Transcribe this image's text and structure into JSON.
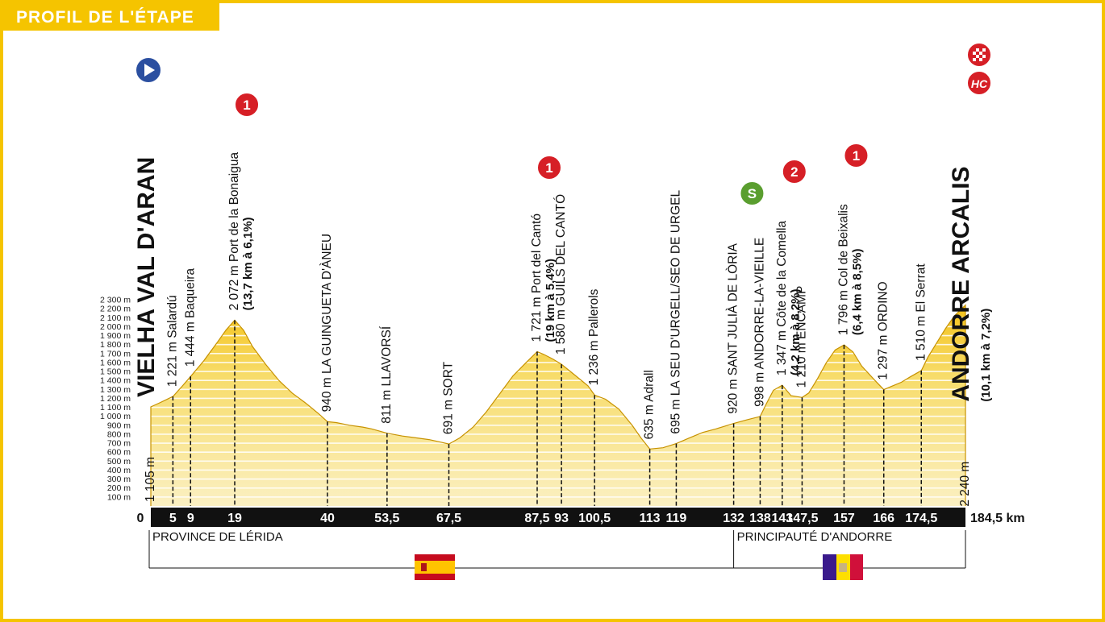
{
  "header": {
    "title": "PROFIL DE L'ÉTAPE"
  },
  "colors": {
    "frame": "#f5c400",
    "fill_light": "#fbeaa0",
    "fill_dark": "#e0a800",
    "axis_bar": "#111111",
    "climb_red": "#d61f26",
    "sprint_green": "#5a9e2f",
    "start_blue": "#2b4fa0"
  },
  "chart_data": {
    "type": "area",
    "x_unit": "km",
    "y_unit": "m",
    "xlim": [
      0,
      184.5
    ],
    "ylim": [
      0,
      2300
    ],
    "y_ticks": [
      "100 m",
      "200 m",
      "300 m",
      "400 m",
      "500 m",
      "600 m",
      "700 m",
      "800 m",
      "900 m",
      "1 000 m",
      "1 100 m",
      "1 200 m",
      "1 300 m",
      "1 400 m",
      "1 500 m",
      "1 600 m",
      "1 700 m",
      "1 800 m",
      "1 900 m",
      "2 000 m",
      "2 100 m",
      "2 200 m",
      "2 300 m"
    ],
    "y_tick_values": [
      100,
      200,
      300,
      400,
      500,
      600,
      700,
      800,
      900,
      1000,
      1100,
      1200,
      1300,
      1400,
      1500,
      1600,
      1700,
      1800,
      1900,
      2000,
      2100,
      2200,
      2300
    ],
    "x_ticks": [
      "0",
      "5",
      "9",
      "19",
      "40",
      "53,5",
      "67,5",
      "87,5",
      "93",
      "100,5",
      "113",
      "119",
      "132",
      "138",
      "143",
      "147,5",
      "157",
      "166",
      "174,5",
      "184,5 km"
    ],
    "x_tick_values": [
      0,
      5,
      9,
      19,
      40,
      53.5,
      67.5,
      87.5,
      93,
      100.5,
      113,
      119,
      132,
      138,
      143,
      147.5,
      157,
      166,
      174.5,
      184.5
    ],
    "profile": {
      "x": [
        0,
        2,
        5,
        7,
        9,
        12,
        15,
        17,
        19,
        21,
        23,
        26,
        29,
        32,
        35,
        38,
        40,
        42,
        45,
        48,
        50,
        53.5,
        57,
        60,
        63,
        65,
        67.5,
        70,
        73,
        76,
        79,
        82,
        85,
        87.5,
        89,
        91,
        93,
        95,
        97,
        99,
        100.5,
        103,
        106,
        109,
        111,
        113,
        116,
        119,
        122,
        125,
        128,
        130,
        132,
        135,
        138,
        139.5,
        141,
        143,
        145,
        147.5,
        149,
        151,
        153,
        155,
        157,
        159,
        161,
        164,
        166,
        168,
        170,
        172,
        174.5,
        176,
        178,
        180,
        182,
        184.5
      ],
      "y": [
        1105,
        1150,
        1221,
        1330,
        1444,
        1620,
        1820,
        1960,
        2072,
        1960,
        1780,
        1580,
        1400,
        1260,
        1150,
        1030,
        940,
        930,
        900,
        880,
        860,
        811,
        780,
        760,
        740,
        720,
        691,
        760,
        880,
        1050,
        1250,
        1450,
        1600,
        1721,
        1690,
        1640,
        1580,
        1500,
        1420,
        1340,
        1236,
        1190,
        1080,
        900,
        760,
        635,
        650,
        695,
        760,
        820,
        860,
        890,
        920,
        960,
        998,
        1150,
        1290,
        1347,
        1230,
        1210,
        1260,
        1420,
        1600,
        1740,
        1796,
        1720,
        1560,
        1400,
        1297,
        1340,
        1380,
        1440,
        1510,
        1660,
        1820,
        1980,
        2120,
        2240
      ]
    },
    "places": [
      {
        "km": 0,
        "elev": "1 105 m",
        "name": "VIELHA VAL D'ARAN",
        "style": "big"
      },
      {
        "km": 5,
        "elev": "1 221 m",
        "name": "Salardú",
        "style": "mixed"
      },
      {
        "km": 9,
        "elev": "1 444 m",
        "name": "Baqueira",
        "style": "mixed"
      },
      {
        "km": 19,
        "elev": "2 072 m",
        "name": "Port de la Bonaigua",
        "detail": "(13,7 km à 6,1%)",
        "cat": "1",
        "style": "mixed"
      },
      {
        "km": 40,
        "elev": "940 m",
        "name": "LA GUINGUETA D'ÀNEU",
        "style": "caps"
      },
      {
        "km": 53.5,
        "elev": "811 m",
        "name": "LLAVORSÍ",
        "style": "caps"
      },
      {
        "km": 67.5,
        "elev": "691 m",
        "name": "SORT",
        "style": "caps"
      },
      {
        "km": 87.5,
        "elev": "1 721 m",
        "name": "Port del Cantó",
        "detail": "(19 km à 5,4%)",
        "cat": "1",
        "style": "mixed"
      },
      {
        "km": 93,
        "elev": "1 580 m",
        "name": "GUILS DEL CANTÓ",
        "style": "caps"
      },
      {
        "km": 100.5,
        "elev": "1 236 m",
        "name": "Pallerols",
        "style": "mixed"
      },
      {
        "km": 113,
        "elev": "635 m",
        "name": "Adrall",
        "style": "mixed"
      },
      {
        "km": 119,
        "elev": "695 m",
        "name": "LA SEU D'URGELL/SEO DE URGEL",
        "style": "caps"
      },
      {
        "km": 132,
        "elev": "920 m",
        "name": "SANT JULIÀ DE LÒRIA",
        "style": "caps"
      },
      {
        "km": 138,
        "elev": "998 m",
        "name": "ANDORRE-LA-VIEILLE",
        "cat": "S",
        "style": "caps"
      },
      {
        "km": 143,
        "elev": "1 347 m",
        "name": "Côte de la Comella",
        "detail": "(4,2 km à 8,2%)",
        "cat": "2",
        "style": "mixed"
      },
      {
        "km": 147.5,
        "elev": "1 210 m",
        "name": "ENCAMP",
        "style": "caps"
      },
      {
        "km": 157,
        "elev": "1 796 m",
        "name": "Col de Beixalis",
        "detail": "(6,4 km à 8,5%)",
        "cat": "1",
        "style": "mixed"
      },
      {
        "km": 166,
        "elev": "1 297 m",
        "name": "ORDINO",
        "style": "caps"
      },
      {
        "km": 174.5,
        "elev": "1 510 m",
        "name": "El Serrat",
        "style": "mixed"
      },
      {
        "km": 184.5,
        "elev": "2 240 m",
        "name": "ANDORRE ARCALIS",
        "detail": "(10,1 km à 7,2%)",
        "cat": "HC",
        "style": "big"
      }
    ],
    "regions": [
      {
        "name": "PROVINCE DE LÉRIDA",
        "from_km": 0,
        "to_km": 132,
        "flag": "spain"
      },
      {
        "name": "PRINCIPAUTÉ D'ANDORRE",
        "from_km": 132,
        "to_km": 184.5,
        "flag": "andorra"
      }
    ]
  }
}
